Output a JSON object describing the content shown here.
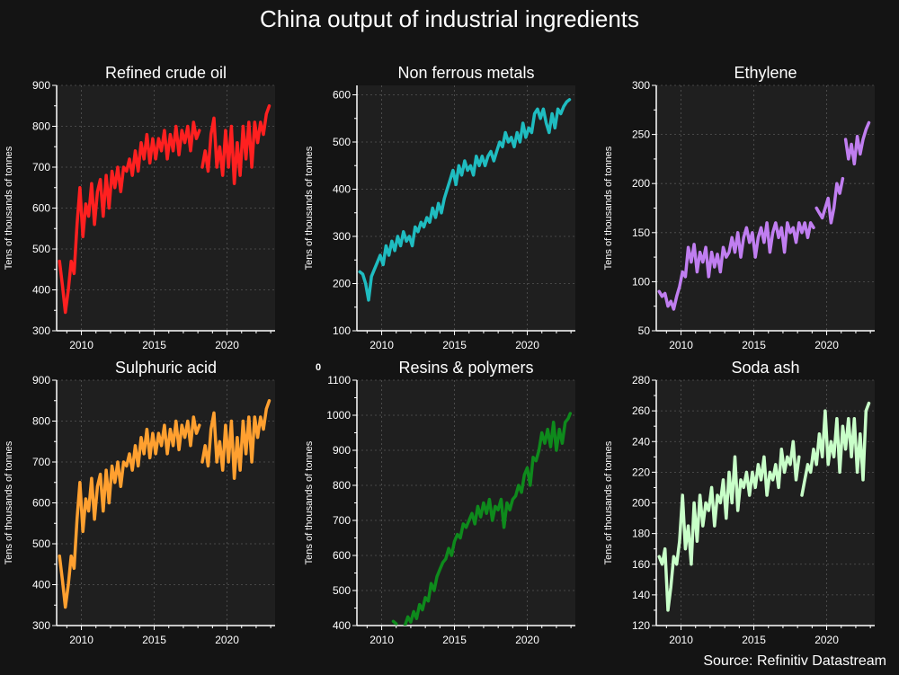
{
  "title": "China output of industrial ingredients",
  "source": "Source: Refinitiv Datastream",
  "stray_label": "0",
  "ylabel": "Tens of thousands of tonnes",
  "chart_data": [
    {
      "type": "line",
      "title": "Refined crude oil",
      "ylabel": "Tens of thousands of tonnes",
      "color": "#ff2020",
      "xlim": [
        2008.3,
        2023.3
      ],
      "ylim": [
        300,
        900
      ],
      "xticks": [
        2010,
        2015,
        2020
      ],
      "yticks": [
        300,
        400,
        500,
        600,
        700,
        800,
        900
      ],
      "grid": true,
      "series": [
        {
          "x": [
            2008.5,
            2008.7,
            2008.9,
            2009.1,
            2009.3,
            2009.5,
            2009.7,
            2009.9,
            2010.1,
            2010.3,
            2010.5,
            2010.7,
            2010.9,
            2011.1,
            2011.3,
            2011.5,
            2011.7,
            2011.9,
            2012.1,
            2012.3,
            2012.5,
            2012.7,
            2012.9,
            2013.1,
            2013.3,
            2013.5,
            2013.7,
            2013.9,
            2014.1,
            2014.3,
            2014.5,
            2014.7,
            2014.9,
            2015.1,
            2015.3,
            2015.5,
            2015.7,
            2015.9,
            2016.1,
            2016.3,
            2016.5,
            2016.7,
            2016.9,
            2017.1,
            2017.3,
            2017.5,
            2017.7,
            2017.9,
            2018.1,
            null,
            2018.3,
            2018.5,
            2018.7,
            2018.9,
            2019.1,
            2019.3,
            2019.5,
            2019.7,
            2019.9,
            2020.1,
            2020.3,
            2020.5,
            2020.7,
            2020.9,
            2021.1,
            2021.3,
            2021.5,
            2021.7,
            2021.9,
            2022.1,
            2022.3,
            2022.5,
            2022.7,
            2022.9
          ],
          "y": [
            470,
            410,
            345,
            400,
            470,
            440,
            560,
            650,
            530,
            610,
            580,
            660,
            560,
            640,
            670,
            580,
            680,
            600,
            690,
            650,
            700,
            640,
            700,
            690,
            720,
            680,
            740,
            690,
            760,
            720,
            780,
            710,
            770,
            720,
            770,
            740,
            790,
            720,
            780,
            740,
            800,
            730,
            790,
            760,
            800,
            740,
            810,
            770,
            790,
            null,
            700,
            740,
            690,
            780,
            820,
            700,
            750,
            680,
            790,
            700,
            800,
            660,
            760,
            680,
            800,
            720,
            810,
            700,
            810,
            760,
            810,
            780,
            830,
            850
          ]
        }
      ]
    },
    {
      "type": "line",
      "title": "Non ferrous metals",
      "ylabel": "Tens of thousands of tonnes",
      "color": "#1fbcc0",
      "xlim": [
        2008.3,
        2023.3
      ],
      "ylim": [
        100,
        620
      ],
      "xticks": [
        2010,
        2015,
        2020
      ],
      "yticks": [
        100,
        200,
        300,
        400,
        500,
        600
      ],
      "grid": true,
      "series": [
        {
          "x": [
            2008.5,
            2008.7,
            2008.9,
            2009.1,
            2009.3,
            2009.5,
            2009.7,
            2009.9,
            2010.1,
            2010.3,
            2010.5,
            2010.7,
            2010.9,
            2011.1,
            2011.3,
            2011.5,
            2011.7,
            2011.9,
            2012.1,
            2012.3,
            2012.5,
            2012.7,
            2012.9,
            2013.1,
            2013.3,
            2013.5,
            2013.7,
            2013.9,
            2014.1,
            2014.3,
            2014.5,
            2014.7,
            2014.9,
            2015.1,
            2015.3,
            2015.5,
            2015.7,
            2015.9,
            2016.1,
            2016.3,
            2016.5,
            2016.7,
            2016.9,
            2017.1,
            2017.3,
            2017.5,
            2017.7,
            2017.9,
            2018.1,
            2018.3,
            2018.5,
            2018.7,
            2018.9,
            2019.1,
            2019.3,
            2019.5,
            2019.7,
            2019.9,
            2020.1,
            2020.3,
            2020.5,
            2020.7,
            2020.9,
            2021.1,
            2021.3,
            2021.5,
            2021.7,
            2021.9,
            2022.1,
            2022.3,
            2022.5,
            2022.7,
            2022.9
          ],
          "y": [
            225,
            220,
            200,
            165,
            215,
            230,
            245,
            260,
            240,
            280,
            260,
            290,
            270,
            300,
            280,
            310,
            290,
            300,
            280,
            320,
            310,
            330,
            320,
            340,
            330,
            360,
            340,
            370,
            350,
            380,
            400,
            420,
            440,
            410,
            450,
            430,
            460,
            440,
            450,
            430,
            470,
            450,
            470,
            450,
            470,
            480,
            460,
            480,
            500,
            490,
            520,
            500,
            510,
            490,
            520,
            500,
            540,
            510,
            530,
            520,
            560,
            570,
            550,
            570,
            540,
            520,
            560,
            530,
            570,
            560,
            575,
            585,
            590
          ]
        }
      ]
    },
    {
      "type": "line",
      "title": "Ethylene",
      "ylabel": "Tens of thousands of tonnes",
      "color": "#c07ef0",
      "xlim": [
        2008.3,
        2023.3
      ],
      "ylim": [
        50,
        300
      ],
      "xticks": [
        2010,
        2015,
        2020
      ],
      "yticks": [
        50,
        100,
        150,
        200,
        250,
        300
      ],
      "grid": true,
      "series": [
        {
          "x": [
            2008.5,
            2008.7,
            2008.9,
            2009.1,
            2009.3,
            2009.5,
            2009.7,
            2009.9,
            2010.1,
            2010.3,
            2010.5,
            2010.7,
            2010.9,
            2011.1,
            2011.3,
            2011.5,
            2011.7,
            2011.9,
            2012.1,
            2012.3,
            2012.5,
            2012.7,
            2012.9,
            2013.1,
            2013.3,
            2013.5,
            2013.7,
            2013.9,
            2014.1,
            2014.3,
            2014.5,
            2014.7,
            2014.9,
            2015.1,
            2015.3,
            2015.5,
            2015.7,
            2015.9,
            2016.1,
            2016.3,
            2016.5,
            2016.7,
            2016.9,
            2017.1,
            2017.3,
            2017.5,
            2017.7,
            2017.9,
            2018.1,
            2018.3,
            2018.5,
            2018.7,
            2018.9,
            2019.1,
            null,
            2019.3,
            2019.5,
            2019.7,
            2019.9,
            2020.1,
            2020.3,
            2020.5,
            2020.7,
            2020.9,
            2021.1,
            null,
            2021.3,
            2021.5,
            2021.7,
            2021.9,
            2022.1,
            2022.3,
            2022.5,
            2022.7,
            2022.9
          ],
          "y": [
            90,
            85,
            88,
            75,
            80,
            72,
            85,
            95,
            110,
            105,
            135,
            120,
            138,
            110,
            130,
            120,
            135,
            105,
            130,
            115,
            128,
            110,
            135,
            125,
            130,
            145,
            130,
            150,
            125,
            145,
            155,
            140,
            150,
            125,
            145,
            155,
            140,
            160,
            130,
            150,
            160,
            145,
            155,
            130,
            160,
            150,
            155,
            140,
            160,
            150,
            160,
            145,
            160,
            155,
            null,
            175,
            170,
            165,
            175,
            185,
            160,
            175,
            200,
            190,
            205,
            null,
            245,
            225,
            240,
            220,
            248,
            230,
            245,
            255,
            262
          ]
        }
      ]
    },
    {
      "type": "line",
      "title": "Sulphuric acid",
      "ylabel": "Tens of thousands of tonnes",
      "color": "#ffa030",
      "xlim": [
        2008.3,
        2023.3
      ],
      "ylim": [
        300,
        900
      ],
      "xticks": [
        2010,
        2015,
        2020
      ],
      "yticks": [
        300,
        400,
        500,
        600,
        700,
        800,
        900
      ],
      "grid": true,
      "series": [
        {
          "x": [
            2008.5,
            2008.7,
            2008.9,
            2009.1,
            2009.3,
            2009.5,
            2009.7,
            2009.9,
            2010.1,
            2010.3,
            2010.5,
            2010.7,
            2010.9,
            2011.1,
            2011.3,
            2011.5,
            2011.7,
            2011.9,
            2012.1,
            2012.3,
            2012.5,
            2012.7,
            2012.9,
            2013.1,
            2013.3,
            2013.5,
            2013.7,
            2013.9,
            2014.1,
            2014.3,
            2014.5,
            2014.7,
            2014.9,
            2015.1,
            2015.3,
            2015.5,
            2015.7,
            2015.9,
            2016.1,
            2016.3,
            2016.5,
            2016.7,
            2016.9,
            2017.1,
            2017.3,
            2017.5,
            2017.7,
            2017.9,
            2018.1,
            null,
            2018.3,
            2018.5,
            2018.7,
            2018.9,
            2019.1,
            2019.3,
            2019.5,
            2019.7,
            2019.9,
            2020.1,
            2020.3,
            2020.5,
            2020.7,
            2020.9,
            2021.1,
            2021.3,
            2021.5,
            2021.7,
            2021.9,
            2022.1,
            2022.3,
            2022.5,
            2022.7,
            2022.9
          ],
          "y": [
            470,
            410,
            345,
            400,
            470,
            440,
            560,
            650,
            530,
            610,
            580,
            660,
            560,
            640,
            670,
            580,
            680,
            600,
            690,
            650,
            700,
            640,
            700,
            690,
            720,
            680,
            740,
            690,
            760,
            720,
            780,
            710,
            770,
            720,
            770,
            740,
            790,
            720,
            780,
            740,
            800,
            730,
            790,
            760,
            800,
            740,
            810,
            770,
            790,
            null,
            700,
            740,
            690,
            780,
            820,
            700,
            750,
            680,
            790,
            700,
            800,
            660,
            760,
            680,
            800,
            720,
            810,
            700,
            810,
            760,
            810,
            780,
            830,
            850
          ]
        }
      ]
    },
    {
      "type": "line",
      "title": "Resins & polymers",
      "ylabel": "Tens of thousands of tonnes",
      "color": "#0e8a1c",
      "xlim": [
        2008.3,
        2023.3
      ],
      "ylim": [
        400,
        1100
      ],
      "xticks": [
        2010,
        2015,
        2020
      ],
      "yticks": [
        400,
        500,
        600,
        700,
        800,
        900,
        1000,
        1100
      ],
      "grid": true,
      "series": [
        {
          "x": [
            2010.8,
            2011.0,
            null,
            2011.6,
            2011.8,
            2012.0,
            2012.2,
            2012.4,
            2012.6,
            2012.8,
            2013.0,
            2013.2,
            2013.4,
            2013.6,
            2013.8,
            2014.0,
            2014.2,
            2014.4,
            2014.6,
            2014.8,
            2015.0,
            2015.2,
            2015.4,
            2015.6,
            2015.8,
            2016.0,
            2016.2,
            2016.4,
            2016.6,
            2016.8,
            2017.0,
            2017.2,
            2017.4,
            2017.6,
            2017.8,
            2018.0,
            2018.2,
            2018.4,
            2018.6,
            2018.8,
            2019.0,
            2019.2,
            2019.4,
            2019.6,
            2019.8,
            2020.0,
            2020.2,
            2020.4,
            2020.6,
            2020.8,
            2021.0,
            2021.2,
            2021.4,
            2021.6,
            2021.8,
            2022.0,
            2022.2,
            2022.4,
            2022.6,
            2022.8,
            2022.95
          ],
          "y": [
            412,
            405,
            null,
            400,
            425,
            410,
            440,
            420,
            460,
            445,
            480,
            470,
            520,
            500,
            540,
            560,
            580,
            590,
            620,
            600,
            640,
            660,
            650,
            690,
            680,
            700,
            720,
            690,
            740,
            710,
            750,
            720,
            760,
            700,
            740,
            730,
            760,
            680,
            750,
            730,
            760,
            770,
            800,
            780,
            830,
            850,
            800,
            880,
            870,
            900,
            950,
            920,
            960,
            910,
            980,
            900,
            960,
            920,
            980,
            990,
            1005
          ]
        }
      ]
    },
    {
      "type": "line",
      "title": "Soda ash",
      "ylabel": "Tens of thousands of tonnes",
      "color": "#c8ffc8",
      "xlim": [
        2008.3,
        2023.3
      ],
      "ylim": [
        120,
        280
      ],
      "xticks": [
        2010,
        2015,
        2020
      ],
      "yticks": [
        120,
        140,
        160,
        180,
        200,
        220,
        240,
        260,
        280
      ],
      "grid": true,
      "series": [
        {
          "x": [
            2008.5,
            2008.7,
            2008.9,
            2009.1,
            2009.3,
            2009.5,
            2009.7,
            2009.9,
            2010.1,
            2010.3,
            2010.5,
            2010.7,
            2010.9,
            2011.1,
            2011.3,
            2011.5,
            2011.7,
            2011.9,
            2012.1,
            2012.3,
            2012.5,
            2012.7,
            2012.9,
            2013.1,
            2013.3,
            2013.5,
            2013.7,
            2013.9,
            2014.1,
            2014.3,
            2014.5,
            2014.7,
            2014.9,
            2015.1,
            2015.3,
            2015.5,
            2015.7,
            2015.9,
            2016.1,
            2016.3,
            2016.5,
            2016.7,
            2016.9,
            2017.1,
            2017.3,
            2017.5,
            2017.7,
            2017.9,
            2018.1,
            null,
            2018.3,
            2018.5,
            2018.7,
            2018.9,
            2019.1,
            2019.3,
            2019.5,
            2019.7,
            2019.9,
            2020.1,
            2020.3,
            2020.5,
            2020.7,
            2020.9,
            2021.1,
            2021.3,
            2021.5,
            2021.7,
            2021.9,
            2022.1,
            2022.3,
            2022.5,
            2022.7,
            2022.9
          ],
          "y": [
            165,
            160,
            170,
            130,
            145,
            165,
            160,
            175,
            205,
            170,
            185,
            160,
            200,
            175,
            205,
            185,
            200,
            195,
            210,
            185,
            205,
            200,
            215,
            190,
            220,
            200,
            230,
            195,
            215,
            210,
            220,
            205,
            220,
            210,
            225,
            215,
            230,
            205,
            220,
            215,
            225,
            210,
            235,
            220,
            230,
            225,
            240,
            215,
            230,
            null,
            205,
            215,
            225,
            220,
            235,
            225,
            245,
            230,
            260,
            225,
            240,
            230,
            255,
            220,
            250,
            235,
            255,
            230,
            255,
            220,
            245,
            215,
            260,
            265
          ]
        }
      ]
    }
  ]
}
